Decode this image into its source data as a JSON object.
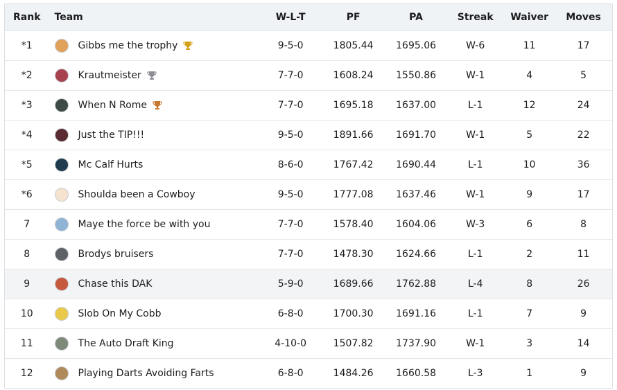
{
  "headers": {
    "rank": "Rank",
    "team": "Team",
    "wlt": "W-L-T",
    "pf": "PF",
    "pa": "PA",
    "streak": "Streak",
    "waiver": "Waiver",
    "moves": "Moves"
  },
  "colors": {
    "gold_trophy": "#d4a017",
    "silver_trophy": "#8e8e93",
    "bronze_trophy": "#c7772f"
  },
  "rows": [
    {
      "rank": "*1",
      "team": "Gibbs me the trophy",
      "trophy": "gold-trophy-icon",
      "wlt": "9-5-0",
      "pf": "1805.44",
      "pa": "1695.06",
      "streak": "W-6",
      "waiver": "11",
      "moves": "17",
      "avatar_color": "#e0a15a"
    },
    {
      "rank": "*2",
      "team": "Krautmeister",
      "trophy": "silver-trophy-icon",
      "wlt": "7-7-0",
      "pf": "1608.24",
      "pa": "1550.86",
      "streak": "W-1",
      "waiver": "4",
      "moves": "5",
      "avatar_color": "#a7434f"
    },
    {
      "rank": "*3",
      "team": "When N Rome",
      "trophy": "bronze-trophy-icon",
      "wlt": "7-7-0",
      "pf": "1695.18",
      "pa": "1637.00",
      "streak": "L-1",
      "waiver": "12",
      "moves": "24",
      "avatar_color": "#3e4b45"
    },
    {
      "rank": "*4",
      "team": "Just the TIP!!!",
      "trophy": null,
      "wlt": "9-5-0",
      "pf": "1891.66",
      "pa": "1691.70",
      "streak": "W-1",
      "waiver": "5",
      "moves": "22",
      "avatar_color": "#5a2b32"
    },
    {
      "rank": "*5",
      "team": "Mc Calf Hurts",
      "trophy": null,
      "wlt": "8-6-0",
      "pf": "1767.42",
      "pa": "1690.44",
      "streak": "L-1",
      "waiver": "10",
      "moves": "36",
      "avatar_color": "#1f3b4d"
    },
    {
      "rank": "*6",
      "team": "Shoulda been a Cowboy",
      "trophy": null,
      "wlt": "9-5-0",
      "pf": "1777.08",
      "pa": "1637.46",
      "streak": "W-1",
      "waiver": "9",
      "moves": "17",
      "avatar_color": "#f5e3cf"
    },
    {
      "rank": "7",
      "team": "Maye the force be with you",
      "trophy": null,
      "wlt": "7-7-0",
      "pf": "1578.40",
      "pa": "1604.06",
      "streak": "W-3",
      "waiver": "6",
      "moves": "8",
      "avatar_color": "#8fb4d6"
    },
    {
      "rank": "8",
      "team": "Brodys bruisers",
      "trophy": null,
      "wlt": "7-7-0",
      "pf": "1478.30",
      "pa": "1624.66",
      "streak": "L-1",
      "waiver": "2",
      "moves": "11",
      "avatar_color": "#5e6266"
    },
    {
      "rank": "9",
      "team": "Chase this DAK",
      "trophy": null,
      "wlt": "5-9-0",
      "pf": "1689.66",
      "pa": "1762.88",
      "streak": "L-4",
      "waiver": "8",
      "moves": "26",
      "avatar_color": "#c55a3f"
    },
    {
      "rank": "10",
      "team": "Slob On My Cobb",
      "trophy": null,
      "wlt": "6-8-0",
      "pf": "1700.30",
      "pa": "1691.16",
      "streak": "L-1",
      "waiver": "7",
      "moves": "9",
      "avatar_color": "#e9c94a"
    },
    {
      "rank": "11",
      "team": "The Auto Draft King",
      "trophy": null,
      "wlt": "4-10-0",
      "pf": "1507.82",
      "pa": "1737.90",
      "streak": "W-1",
      "waiver": "3",
      "moves": "14",
      "avatar_color": "#7d8a7a"
    },
    {
      "rank": "12",
      "team": "Playing Darts Avoiding Farts",
      "trophy": null,
      "wlt": "6-8-0",
      "pf": "1484.26",
      "pa": "1660.58",
      "streak": "L-3",
      "waiver": "1",
      "moves": "9",
      "avatar_color": "#b08a5a"
    }
  ]
}
